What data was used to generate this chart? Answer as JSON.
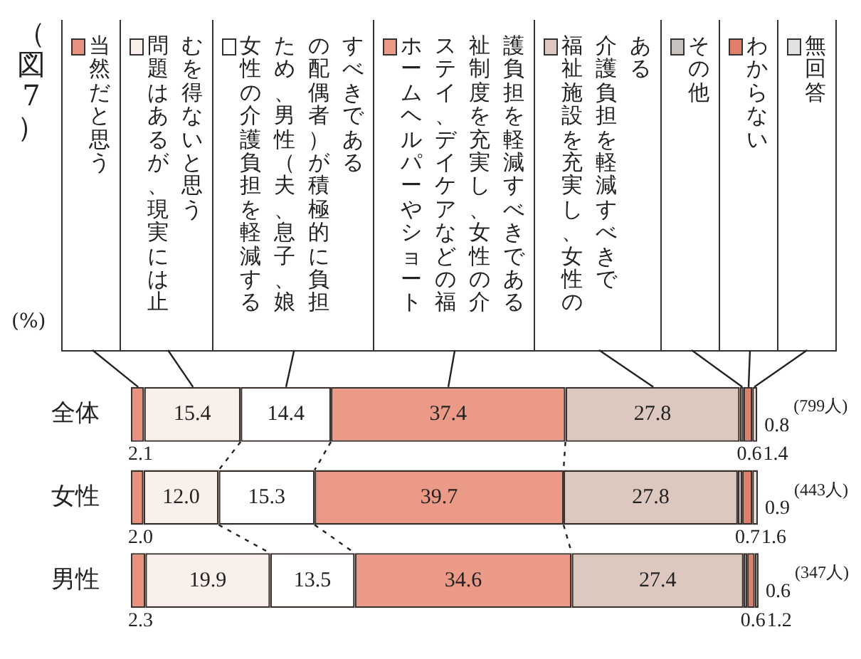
{
  "chart_data": {
    "type": "bar",
    "orientation": "horizontal",
    "stacked": true,
    "legend": "top",
    "grid": false,
    "title": "（図7）",
    "categories": [
      "全体",
      "女性",
      "男性"
    ],
    "series": [
      {
        "name": "当然だと思う",
        "color": "#e8917f",
        "values": [
          2.1,
          2.0,
          2.3
        ],
        "value_labels": [
          "2.1",
          "2.0",
          "2.3"
        ]
      },
      {
        "name": "問題はあるが、現実には止むを得ないと思う",
        "color": "#f9efeb",
        "values": [
          15.4,
          12.0,
          19.9
        ],
        "value_labels": [
          "15.4",
          "12.0",
          "19.9"
        ]
      },
      {
        "name": "女性の介護負担を軽減するため、男性（夫、息子、娘の配偶者）が積極的に負担すべきである",
        "color": "#ffffff",
        "values": [
          14.4,
          15.3,
          13.5
        ],
        "value_labels": [
          "14.4",
          "15.3",
          "13.5"
        ]
      },
      {
        "name": "ホームヘルパーやショートステイ、デイケアなどの福祉制度を充実し、女性の介護負担を軽減すべきである",
        "color": "#ec9a88",
        "values": [
          37.4,
          39.7,
          34.6
        ],
        "value_labels": [
          "37.4",
          "39.7",
          "34.6"
        ]
      },
      {
        "name": "福祉施設を充実し、女性の介護負担を軽減すべきである",
        "color": "#dcc8bf",
        "values": [
          27.8,
          27.8,
          27.4
        ],
        "value_labels": [
          "27.8",
          "27.8",
          "27.4"
        ]
      },
      {
        "name": "その他",
        "color": "#c9c3c0",
        "values": [
          0.6,
          0.7,
          0.6
        ],
        "value_labels": [
          "0.6",
          "0.7",
          "0.6"
        ]
      },
      {
        "name": "わからない",
        "color": "#df7e6a",
        "values": [
          1.4,
          1.6,
          1.2
        ],
        "value_labels": [
          "1.4",
          "1.6",
          "1.2"
        ]
      },
      {
        "name": "無回答",
        "color": "#e2e2e2",
        "values": [
          0.8,
          0.9,
          0.6
        ],
        "value_labels": [
          "0.8",
          "0.9",
          "0.6"
        ]
      }
    ],
    "annotations": [
      "(%)",
      "(799人)",
      "(443人)",
      "(347人)"
    ]
  }
}
